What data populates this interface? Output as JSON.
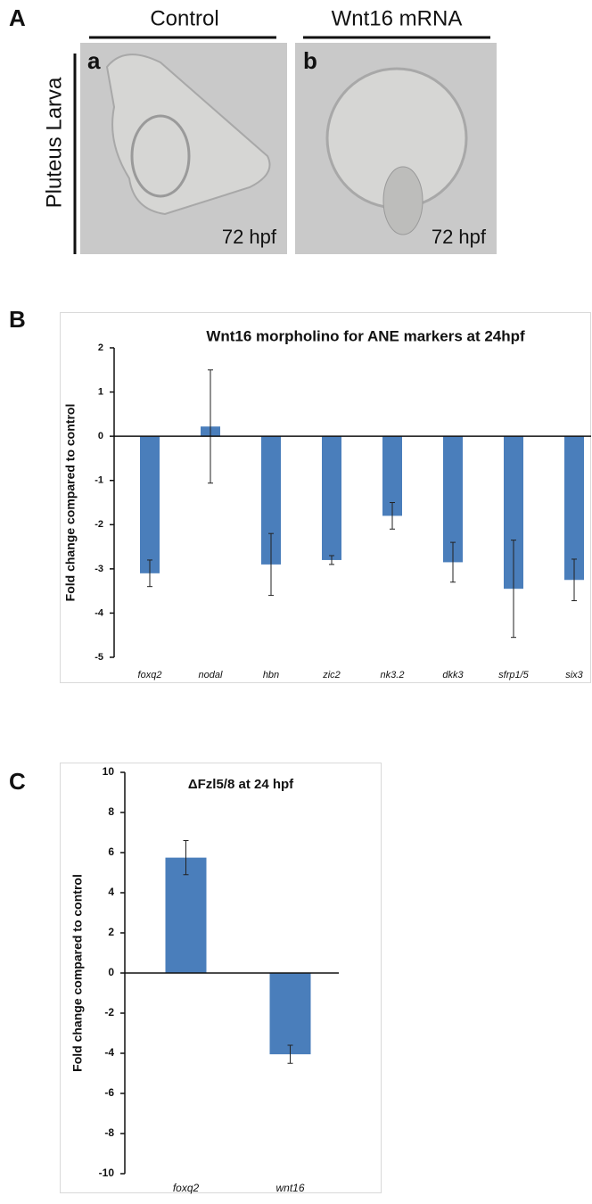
{
  "panel_labels": [
    "A",
    "B",
    "C"
  ],
  "panel_a": {
    "columns": [
      "Control",
      "Wnt16 mRNA"
    ],
    "row_label": "Pluteus Larva",
    "images": [
      {
        "label": "a",
        "time": "72 hpf"
      },
      {
        "label": "b",
        "time": "72 hpf"
      }
    ]
  },
  "chart_data": [
    {
      "type": "bar",
      "title": "Wnt16 morpholino for ANE markers at 24hpf",
      "y_label": "Fold change compared to control",
      "categories": [
        "foxq2",
        "nodal",
        "hbn",
        "zic2",
        "nk3.2",
        "dkk3",
        "sfrp1/5",
        "six3"
      ],
      "values": [
        -3.1,
        0.22,
        -2.9,
        -2.8,
        -1.8,
        -2.85,
        -3.45,
        -3.25
      ],
      "errors": [
        0.3,
        1.28,
        0.7,
        0.1,
        0.3,
        0.45,
        1.1,
        0.47
      ],
      "color": "#4a7ebb",
      "ylim": [
        -5,
        2
      ],
      "yticks": [
        -5,
        -4,
        -3,
        -2,
        -1,
        0,
        1,
        2
      ]
    },
    {
      "type": "bar",
      "title": "ΔFzl5/8 at 24 hpf",
      "y_label": "Fold change compared to control",
      "categories": [
        "foxq2",
        "wnt16"
      ],
      "values": [
        5.75,
        -4.05
      ],
      "errors": [
        0.85,
        0.45
      ],
      "color": "#4a7ebb",
      "ylim": [
        -10,
        10
      ],
      "yticks": [
        -10,
        -8,
        -6,
        -4,
        -2,
        0,
        2,
        4,
        6,
        8,
        10
      ]
    }
  ]
}
